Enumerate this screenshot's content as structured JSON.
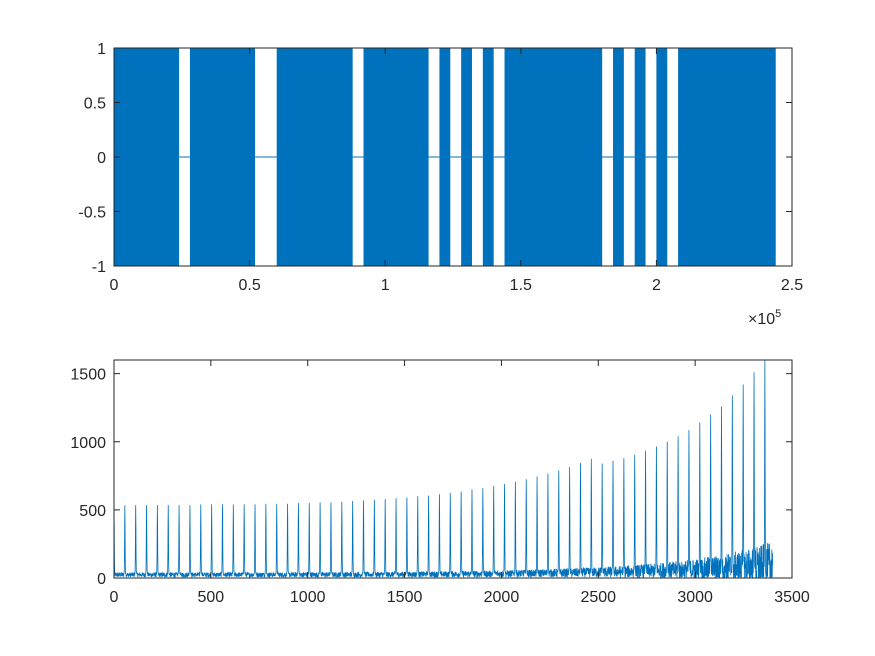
{
  "chart_data": [
    {
      "type": "area",
      "x_range": [
        0,
        250000
      ],
      "ylim": [
        -1,
        1
      ],
      "x_ticks": [
        0,
        50000,
        100000,
        150000,
        200000,
        250000
      ],
      "x_tick_labels": [
        "0",
        "0.5",
        "1",
        "1.5",
        "2",
        "2.5"
      ],
      "y_ticks": [
        -1,
        -0.5,
        0,
        0.5,
        1
      ],
      "y_tick_labels": [
        "-1",
        "-0.5",
        "0",
        "0.5",
        "1"
      ],
      "x_exponent_base": "×10",
      "x_exponent_power": "5",
      "grid": false,
      "color": "#0072BD",
      "signal_extent": [
        0,
        244000
      ],
      "silent_gaps": [
        [
          24000,
          28000
        ],
        [
          52000,
          60000
        ],
        [
          88000,
          92000
        ],
        [
          116000,
          120000
        ],
        [
          124000,
          128000
        ],
        [
          132000,
          136000
        ],
        [
          140000,
          144000
        ],
        [
          180000,
          184000
        ],
        [
          188000,
          192000
        ],
        [
          196000,
          200000
        ],
        [
          204000,
          208000
        ]
      ]
    },
    {
      "type": "line",
      "xlim": [
        0,
        3500
      ],
      "ylim": [
        0,
        1600
      ],
      "x_ticks": [
        0,
        500,
        1000,
        1500,
        2000,
        2500,
        3000,
        3500
      ],
      "x_tick_labels": [
        "0",
        "500",
        "1000",
        "1500",
        "2000",
        "2500",
        "3000",
        "3500"
      ],
      "y_ticks": [
        0,
        500,
        1000,
        1500
      ],
      "y_tick_labels": [
        "0",
        "500",
        "1000",
        "1500"
      ],
      "grid": false,
      "color": "#0072BD",
      "x_extent": [
        0,
        3400
      ],
      "baseline_level": 40,
      "peak_spacing": 56,
      "peaks": [
        {
          "x": 0,
          "y": 530
        },
        {
          "x": 56,
          "y": 535
        },
        {
          "x": 112,
          "y": 535
        },
        {
          "x": 168,
          "y": 535
        },
        {
          "x": 224,
          "y": 535
        },
        {
          "x": 280,
          "y": 535
        },
        {
          "x": 336,
          "y": 535
        },
        {
          "x": 392,
          "y": 535
        },
        {
          "x": 448,
          "y": 540
        },
        {
          "x": 504,
          "y": 540
        },
        {
          "x": 560,
          "y": 540
        },
        {
          "x": 616,
          "y": 540
        },
        {
          "x": 672,
          "y": 540
        },
        {
          "x": 728,
          "y": 540
        },
        {
          "x": 784,
          "y": 545
        },
        {
          "x": 840,
          "y": 545
        },
        {
          "x": 896,
          "y": 545
        },
        {
          "x": 952,
          "y": 550
        },
        {
          "x": 1008,
          "y": 550
        },
        {
          "x": 1064,
          "y": 555
        },
        {
          "x": 1120,
          "y": 555
        },
        {
          "x": 1176,
          "y": 560
        },
        {
          "x": 1232,
          "y": 565
        },
        {
          "x": 1288,
          "y": 570
        },
        {
          "x": 1344,
          "y": 575
        },
        {
          "x": 1400,
          "y": 580
        },
        {
          "x": 1456,
          "y": 585
        },
        {
          "x": 1512,
          "y": 590
        },
        {
          "x": 1568,
          "y": 600
        },
        {
          "x": 1624,
          "y": 605
        },
        {
          "x": 1680,
          "y": 615
        },
        {
          "x": 1736,
          "y": 625
        },
        {
          "x": 1792,
          "y": 635
        },
        {
          "x": 1848,
          "y": 650
        },
        {
          "x": 1904,
          "y": 660
        },
        {
          "x": 1960,
          "y": 675
        },
        {
          "x": 2016,
          "y": 690
        },
        {
          "x": 2072,
          "y": 705
        },
        {
          "x": 2128,
          "y": 725
        },
        {
          "x": 2184,
          "y": 745
        },
        {
          "x": 2240,
          "y": 765
        },
        {
          "x": 2296,
          "y": 790
        },
        {
          "x": 2352,
          "y": 815
        },
        {
          "x": 2408,
          "y": 845
        },
        {
          "x": 2464,
          "y": 875
        },
        {
          "x": 2520,
          "y": 840
        },
        {
          "x": 2576,
          "y": 860
        },
        {
          "x": 2632,
          "y": 880
        },
        {
          "x": 2688,
          "y": 905
        },
        {
          "x": 2744,
          "y": 935
        },
        {
          "x": 2800,
          "y": 965
        },
        {
          "x": 2856,
          "y": 1000
        },
        {
          "x": 2912,
          "y": 1040
        },
        {
          "x": 2968,
          "y": 1085
        },
        {
          "x": 3024,
          "y": 1140
        },
        {
          "x": 3080,
          "y": 1200
        },
        {
          "x": 3136,
          "y": 1260
        },
        {
          "x": 3192,
          "y": 1340
        },
        {
          "x": 3248,
          "y": 1420
        },
        {
          "x": 3304,
          "y": 1510
        },
        {
          "x": 3360,
          "y": 1600
        }
      ]
    }
  ]
}
